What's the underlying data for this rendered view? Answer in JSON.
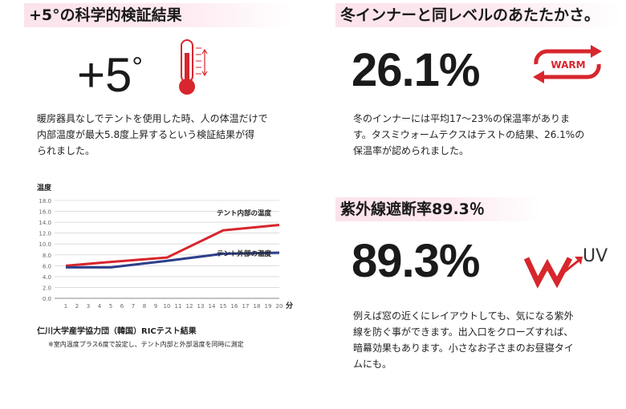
{
  "left": {
    "heading": "+5°の科学的検証結果",
    "big_value": "+5",
    "big_degree": "°",
    "paragraph": [
      "暖房器具なしでテントを使用した時、人の体温だけで",
      "内部温度が最大5.8度上昇するという検証結果が得",
      "られました。"
    ],
    "chart_caption": "仁川大学産学協力団（韓国）RICテスト結果",
    "chart_note": "※室内温度プラス6度で設定し、テント内部と外部温度を同時に測定"
  },
  "chart_data": {
    "type": "line",
    "ylabel": "温度",
    "x_unit": "分",
    "x": [
      1,
      2,
      3,
      4,
      5,
      6,
      7,
      8,
      9,
      10,
      11,
      12,
      13,
      14,
      15,
      16,
      17,
      18,
      19,
      20
    ],
    "yticks": [
      "0.0",
      "2.0",
      "4.0",
      "6.0",
      "8.0",
      "10.0",
      "12.0",
      "14.0",
      "16.0",
      "18.0"
    ],
    "ylim": [
      0,
      18
    ],
    "grid": true,
    "series": [
      {
        "name": "テント内部の温度",
        "color": "#d7262d",
        "points": [
          [
            1,
            6.0
          ],
          [
            5,
            6.7
          ],
          [
            10,
            7.5
          ],
          [
            15,
            12.5
          ],
          [
            20,
            13.5
          ]
        ]
      },
      {
        "name": "テント外部の温度",
        "color": "#2c3f8a",
        "points": [
          [
            1,
            5.7
          ],
          [
            5,
            5.7
          ],
          [
            10,
            6.9
          ],
          [
            15,
            8.2
          ],
          [
            20,
            8.4
          ]
        ]
      }
    ]
  },
  "right_top": {
    "heading": "冬インナーと同レベルのあたたかさ。",
    "big_value": "26.1%",
    "warm_label": "WARM",
    "paragraph": [
      "冬のインナーには平均17〜23%の保温率がありま",
      "す。タスミウォームテクスはテストの結果、26.1%の",
      "保温率が認められました。"
    ]
  },
  "right_bottom": {
    "heading": "紫外線遮断率89.3％",
    "big_value": "89.3%",
    "uv_label": "UV",
    "paragraph": [
      "例えば窓の近くにレイアウトしても、気になる紫外",
      "線を防ぐ事ができます。出入口をクローズすれば、",
      "暗幕効果もあります。小さなお子さまのお昼寝タイ",
      "ムにも。"
    ]
  },
  "colors": {
    "accent_red": "#d7262d",
    "series_blue": "#2c3f8a",
    "heading_bg": "#fbe3ec"
  }
}
